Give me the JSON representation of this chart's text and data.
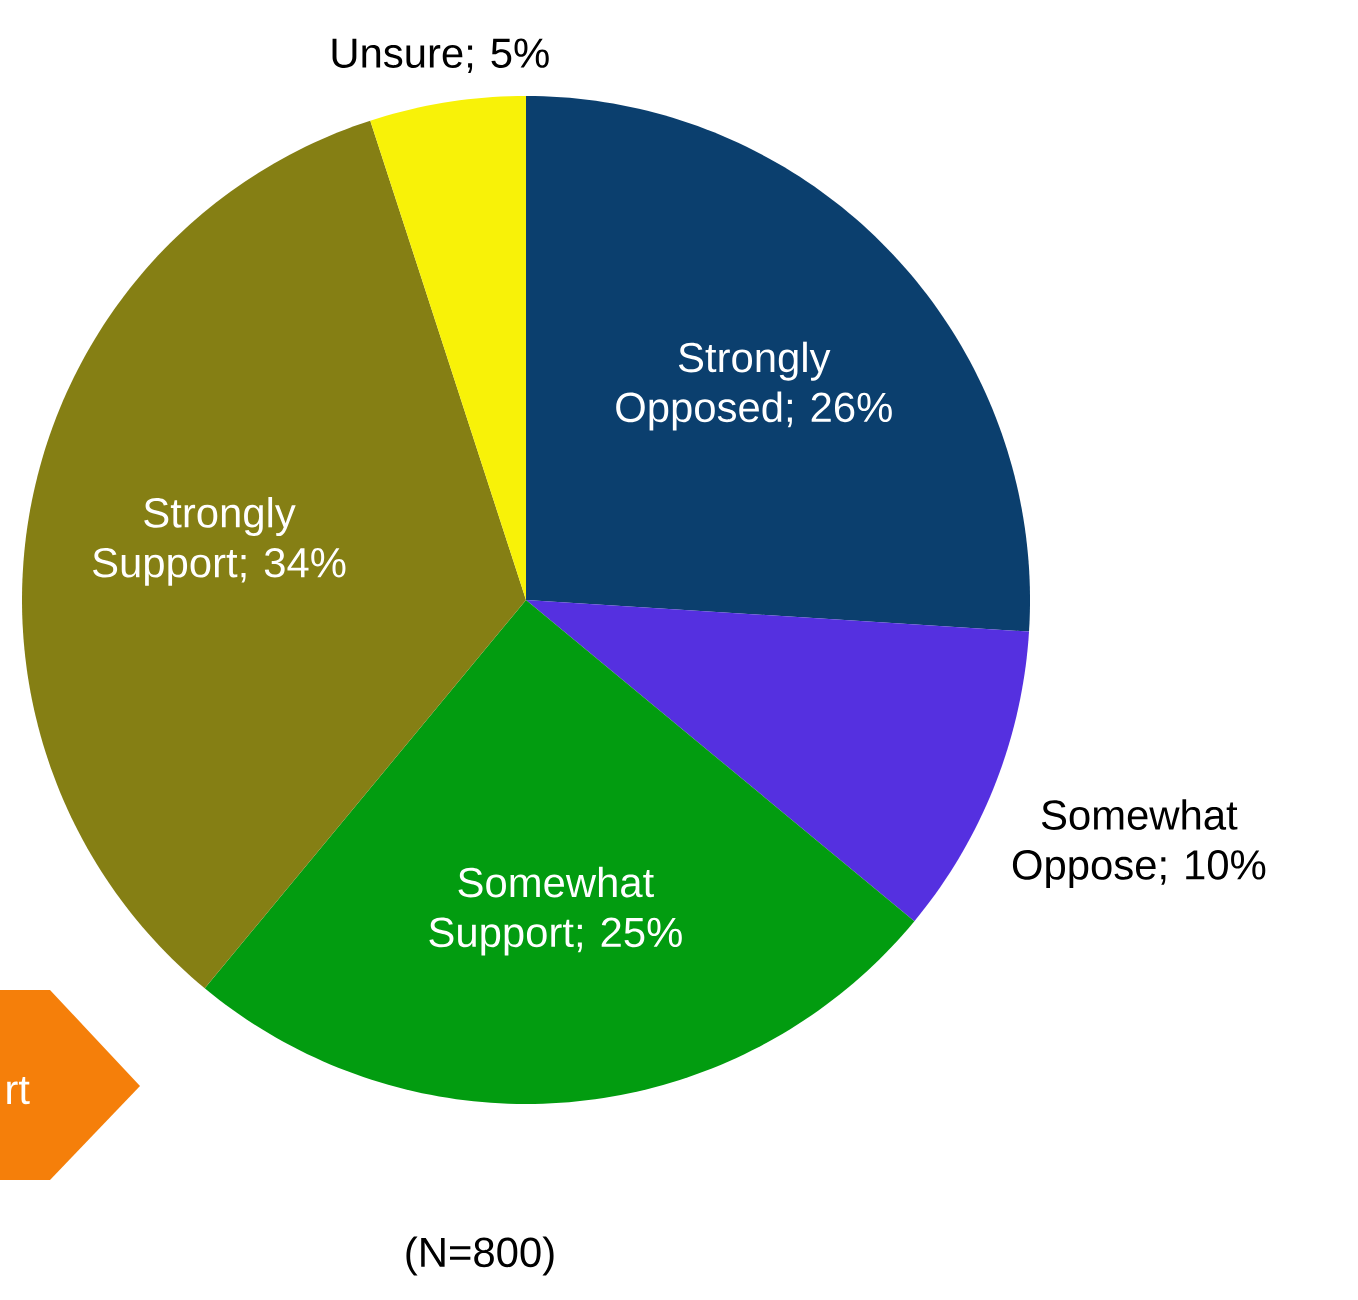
{
  "chart_data": {
    "type": "pie",
    "categories": [
      "Strongly Opposed; 26%",
      "Somewhat Oppose; 10%",
      "Somewhat Support; 25%",
      "Strongly Support; 34%",
      "Unsure; 5%"
    ],
    "values": [
      26,
      10,
      25,
      34,
      5
    ],
    "colors": [
      "#0b3f6e",
      "#5530e0",
      "#029c10",
      "#857f14",
      "#f8f208"
    ],
    "annotations": [
      "(N=800)",
      "rt"
    ]
  }
}
